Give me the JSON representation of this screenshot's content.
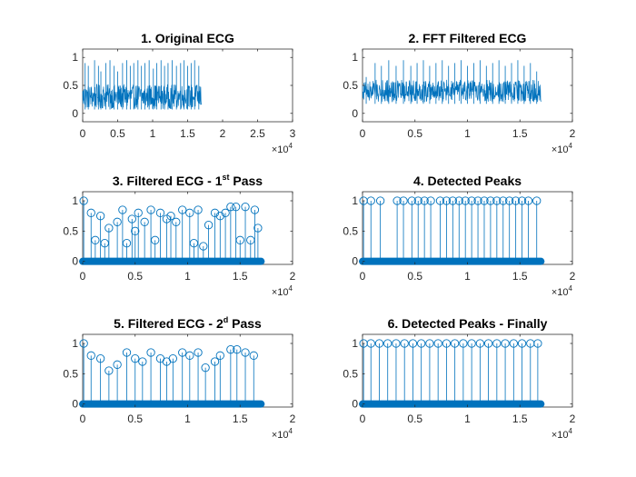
{
  "figure": {
    "background": "#ffffff",
    "line_color": "#0072bd"
  },
  "chart_data": [
    {
      "type": "line",
      "title": "1. Original ECG",
      "title_sup": "",
      "title_suffix": "",
      "xlim": [
        0,
        30000
      ],
      "ylim": [
        -0.15,
        1.15
      ],
      "xticks": [
        0,
        5000,
        10000,
        15000,
        20000,
        25000,
        30000
      ],
      "xtick_labels": [
        "0",
        "0.5",
        "1",
        "1.5",
        "2",
        "2.5",
        "3"
      ],
      "yticks": [
        0,
        0.5,
        1
      ],
      "ytick_labels": [
        "0",
        "0.5",
        "1"
      ],
      "x_multiplier": "×10",
      "x_multiplier_exp": "4",
      "signal": {
        "n_samples": 17000,
        "baseline": 0.3,
        "noise_amplitude": 0.22,
        "min": 0.05,
        "max": 0.55
      },
      "spikes": {
        "x": [
          350,
          800,
          1700,
          2250,
          2600,
          3300,
          3900,
          4500,
          5000,
          5700,
          6300,
          6800,
          7300,
          7900,
          8400,
          8900,
          9500,
          10100,
          10600,
          11200,
          11700,
          12200,
          12800,
          13400,
          14000,
          14500,
          15000,
          15500,
          16000,
          16600
        ],
        "y": [
          0.9,
          0.85,
          0.95,
          0.85,
          0.75,
          0.9,
          0.95,
          0.85,
          0.75,
          0.9,
          0.95,
          0.85,
          0.9,
          0.95,
          0.85,
          0.9,
          0.95,
          0.8,
          0.9,
          0.95,
          0.85,
          0.9,
          0.95,
          0.85,
          0.9,
          0.95,
          0.85,
          0.9,
          0.95,
          0.85
        ]
      }
    },
    {
      "type": "line",
      "title": "2. FFT Filtered ECG",
      "title_sup": "",
      "title_suffix": "",
      "xlim": [
        0,
        20000
      ],
      "ylim": [
        -0.15,
        1.15
      ],
      "xticks": [
        0,
        5000,
        10000,
        15000,
        20000
      ],
      "xtick_labels": [
        "0",
        "0.5",
        "1",
        "1.5",
        "2"
      ],
      "yticks": [
        0,
        0.5,
        1
      ],
      "ytick_labels": [
        "0",
        "0.5",
        "1"
      ],
      "x_multiplier": "×10",
      "x_multiplier_exp": "4",
      "signal": {
        "n_samples": 17000,
        "baseline": 0.4,
        "noise_amplitude": 0.2,
        "min": 0.15,
        "max": 0.62
      },
      "spikes": {
        "x": [
          350,
          1200,
          1800,
          2500,
          3200,
          3900,
          4600,
          5200,
          5800,
          6400,
          7000,
          7600,
          8200,
          8800,
          9400,
          10000,
          10600,
          11200,
          11800,
          12400,
          13000,
          13600,
          14200,
          14800,
          15400,
          16000,
          16600
        ],
        "y": [
          0.65,
          0.9,
          0.85,
          0.95,
          0.85,
          0.95,
          0.85,
          0.9,
          0.95,
          0.85,
          0.9,
          0.95,
          0.85,
          0.9,
          0.95,
          0.85,
          0.9,
          0.95,
          0.85,
          0.9,
          0.95,
          0.85,
          0.9,
          0.95,
          0.85,
          0.9,
          0.75
        ]
      }
    },
    {
      "type": "stem",
      "title": "3. Filtered ECG - 1",
      "title_sup": "st",
      "title_suffix": " Pass",
      "xlim": [
        0,
        20000
      ],
      "ylim": [
        -0.05,
        1.15
      ],
      "xticks": [
        0,
        5000,
        10000,
        15000,
        20000
      ],
      "xtick_labels": [
        "0",
        "0.5",
        "1",
        "1.5",
        "2"
      ],
      "yticks": [
        0,
        0.5,
        1
      ],
      "ytick_labels": [
        "0",
        "0.5",
        "1"
      ],
      "x_multiplier": "×10",
      "x_multiplier_exp": "4",
      "zero_baseline_x": [
        0,
        17000
      ],
      "peaks": {
        "x": [
          100,
          800,
          1200,
          1700,
          2100,
          2500,
          3300,
          3800,
          4200,
          4700,
          5000,
          5300,
          5900,
          6500,
          6900,
          7400,
          8000,
          8400,
          8900,
          9500,
          10200,
          10600,
          11000,
          11500,
          12000,
          12600,
          13100,
          13600,
          14100,
          14600,
          15000,
          15500,
          16000,
          16400,
          16700
        ],
        "y": [
          1.0,
          0.8,
          0.35,
          0.75,
          0.3,
          0.55,
          0.65,
          0.85,
          0.3,
          0.7,
          0.5,
          0.8,
          0.65,
          0.85,
          0.35,
          0.8,
          0.7,
          0.75,
          0.65,
          0.85,
          0.8,
          0.3,
          0.85,
          0.25,
          0.6,
          0.8,
          0.75,
          0.8,
          0.9,
          0.9,
          0.35,
          0.9,
          0.35,
          0.85,
          0.55
        ]
      }
    },
    {
      "type": "stem",
      "title": "4. Detected Peaks",
      "title_sup": "",
      "title_suffix": "",
      "xlim": [
        0,
        20000
      ],
      "ylim": [
        -0.05,
        1.15
      ],
      "xticks": [
        0,
        5000,
        10000,
        15000,
        20000
      ],
      "xtick_labels": [
        "0",
        "0.5",
        "1",
        "1.5",
        "2"
      ],
      "yticks": [
        0,
        0.5,
        1
      ],
      "ytick_labels": [
        "0",
        "0.5",
        "1"
      ],
      "x_multiplier": "×10",
      "x_multiplier_exp": "4",
      "zero_baseline_x": [
        0,
        17000
      ],
      "peaks": {
        "x": [
          100,
          800,
          1700,
          3300,
          3900,
          4700,
          5300,
          5900,
          6500,
          7400,
          8000,
          8600,
          9200,
          9800,
          10400,
          11000,
          11600,
          12200,
          12800,
          13400,
          14000,
          14600,
          15200,
          15800,
          16600
        ],
        "y": [
          1,
          1,
          1,
          1,
          1,
          1,
          1,
          1,
          1,
          1,
          1,
          1,
          1,
          1,
          1,
          1,
          1,
          1,
          1,
          1,
          1,
          1,
          1,
          1,
          1
        ]
      }
    },
    {
      "type": "stem",
      "title": "5. Filtered ECG - 2",
      "title_sup": "d",
      "title_suffix": " Pass",
      "xlim": [
        0,
        20000
      ],
      "ylim": [
        -0.05,
        1.15
      ],
      "xticks": [
        0,
        5000,
        10000,
        15000,
        20000
      ],
      "xtick_labels": [
        "0",
        "0.5",
        "1",
        "1.5",
        "2"
      ],
      "yticks": [
        0,
        0.5,
        1
      ],
      "ytick_labels": [
        "0",
        "0.5",
        "1"
      ],
      "x_multiplier": "×10",
      "x_multiplier_exp": "4",
      "zero_baseline_x": [
        0,
        17000
      ],
      "peaks": {
        "x": [
          100,
          800,
          1700,
          2500,
          3300,
          4200,
          5000,
          5700,
          6500,
          7400,
          8000,
          8600,
          9500,
          10200,
          11000,
          11700,
          12600,
          13100,
          14100,
          14700,
          15500,
          16300
        ],
        "y": [
          1.0,
          0.8,
          0.75,
          0.55,
          0.65,
          0.85,
          0.75,
          0.7,
          0.85,
          0.75,
          0.7,
          0.75,
          0.85,
          0.8,
          0.85,
          0.6,
          0.7,
          0.8,
          0.9,
          0.9,
          0.85,
          0.8
        ]
      }
    },
    {
      "type": "stem",
      "title": "6. Detected Peaks - Finally",
      "title_sup": "",
      "title_suffix": "",
      "xlim": [
        0,
        20000
      ],
      "ylim": [
        -0.05,
        1.15
      ],
      "xticks": [
        0,
        5000,
        10000,
        15000,
        20000
      ],
      "xtick_labels": [
        "0",
        "0.5",
        "1",
        "1.5",
        "2"
      ],
      "yticks": [
        0,
        0.5,
        1
      ],
      "ytick_labels": [
        "0",
        "0.5",
        "1"
      ],
      "x_multiplier": "×10",
      "x_multiplier_exp": "4",
      "zero_baseline_x": [
        0,
        17000
      ],
      "peaks": {
        "x": [
          100,
          800,
          1600,
          2400,
          3200,
          4000,
          4800,
          5600,
          6400,
          7200,
          8000,
          8800,
          9600,
          10400,
          11200,
          12000,
          12800,
          13600,
          14400,
          15200,
          16000,
          16700
        ],
        "y": [
          1,
          1,
          1,
          1,
          1,
          1,
          1,
          1,
          1,
          1,
          1,
          1,
          1,
          1,
          1,
          1,
          1,
          1,
          1,
          1,
          1,
          1
        ]
      }
    }
  ]
}
